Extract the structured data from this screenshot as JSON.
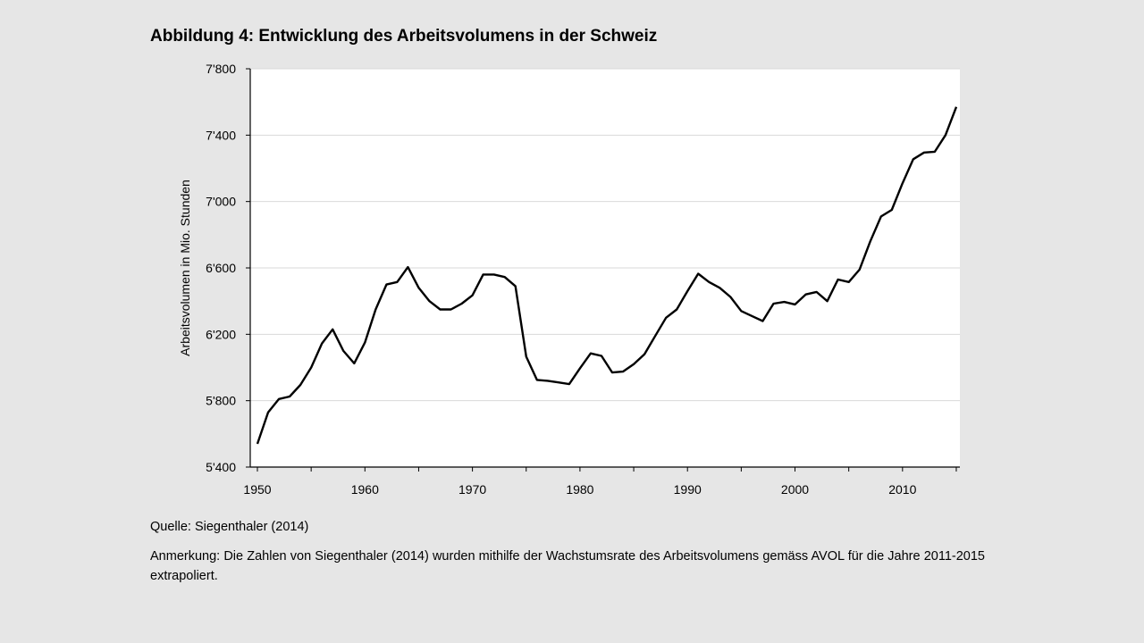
{
  "figure": {
    "title": "Abbildung 4: Entwicklung des Arbeitsvolumens in der Schweiz",
    "source": "Quelle: Siegenthaler (2014)",
    "note": "Anmerkung: Die Zahlen von Siegenthaler (2014) wurden mithilfe der Wachstumsrate des Arbeitsvolumens gemäss AVOL für die Jahre 2011-2015 extrapoliert."
  },
  "chart_data": {
    "type": "line",
    "ylabel": "Arbeitsvolumen  in Mio. Stunden",
    "xlabel": "",
    "xlim": [
      1950,
      2016
    ],
    "ylim": [
      5400,
      7800
    ],
    "x_ticks": [
      1950,
      1960,
      1970,
      1980,
      1990,
      2000,
      2010
    ],
    "x_tick_labels": [
      "1950",
      "1960",
      "1970",
      "1980",
      "1990",
      "2000",
      "2010"
    ],
    "y_ticks": [
      5400,
      5800,
      6200,
      6600,
      7000,
      7400,
      7800
    ],
    "y_tick_labels": [
      "5'400",
      "5'800",
      "6'200",
      "6'600",
      "7'000",
      "7'400",
      "7'800"
    ],
    "grid": "horizontal",
    "line_color": "#000000",
    "series": [
      {
        "x": [
          1950,
          1951,
          1952,
          1953,
          1954,
          1955,
          1956,
          1957,
          1958,
          1959,
          1960,
          1961,
          1962,
          1963,
          1964,
          1965,
          1966,
          1967,
          1968,
          1969,
          1970,
          1971,
          1972,
          1973,
          1974,
          1975,
          1976,
          1977,
          1978,
          1979,
          1980,
          1981,
          1982,
          1983,
          1984,
          1985,
          1986,
          1987,
          1988,
          1989,
          1990,
          1991,
          1992,
          1993,
          1994,
          1995,
          1996,
          1997,
          1998,
          1999,
          2000,
          2001,
          2002,
          2003,
          2004,
          2005,
          2006,
          2007,
          2008,
          2009,
          2010,
          2011,
          2012,
          2013,
          2014,
          2015
        ],
        "y": [
          5540,
          5730,
          5810,
          5825,
          5895,
          6000,
          6145,
          6230,
          6100,
          6025,
          6150,
          6350,
          6500,
          6515,
          6605,
          6480,
          6400,
          6350,
          6350,
          6385,
          6435,
          6560,
          6560,
          6545,
          6490,
          6065,
          5925,
          5920,
          5910,
          5900,
          5995,
          6085,
          6070,
          5970,
          5975,
          6020,
          6080,
          6190,
          6300,
          6350,
          6460,
          6565,
          6515,
          6480,
          6425,
          6340,
          6310,
          6280,
          6385,
          6395,
          6380,
          6440,
          6455,
          6400,
          6530,
          6515,
          6590,
          6760,
          6910,
          6950,
          7110,
          7255,
          7295,
          7300,
          7400,
          7570
        ]
      }
    ]
  }
}
